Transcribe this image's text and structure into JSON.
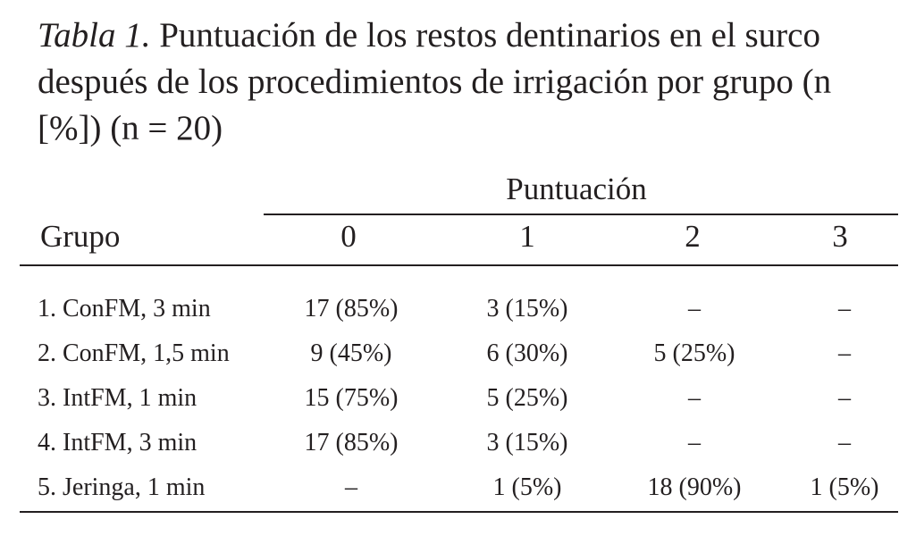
{
  "title_label": "Tabla 1.",
  "title": "Puntuación de los restos dentinarios en el surco después de los procedimientos de irrigación por grupo (n [%]) (n = 20)",
  "table": {
    "group_header": "Puntuación",
    "columns": [
      "Grupo",
      "0",
      "1",
      "2",
      "3"
    ],
    "rows": [
      [
        "1. ConFM, 3 min",
        "17 (85%)",
        "3 (15%)",
        "–",
        "–"
      ],
      [
        "2. ConFM, 1,5 min",
        "9 (45%)",
        "6 (30%)",
        "5 (25%)",
        "–"
      ],
      [
        "3. IntFM, 1 min",
        "15 (75%)",
        "5 (25%)",
        "–",
        "–"
      ],
      [
        "4. IntFM, 3 min",
        "17 (85%)",
        "3 (15%)",
        "–",
        "–"
      ],
      [
        "5. Jeringa, 1 min",
        "–",
        "1 (5%)",
        "18 (90%)",
        "1 (5%)"
      ]
    ]
  }
}
